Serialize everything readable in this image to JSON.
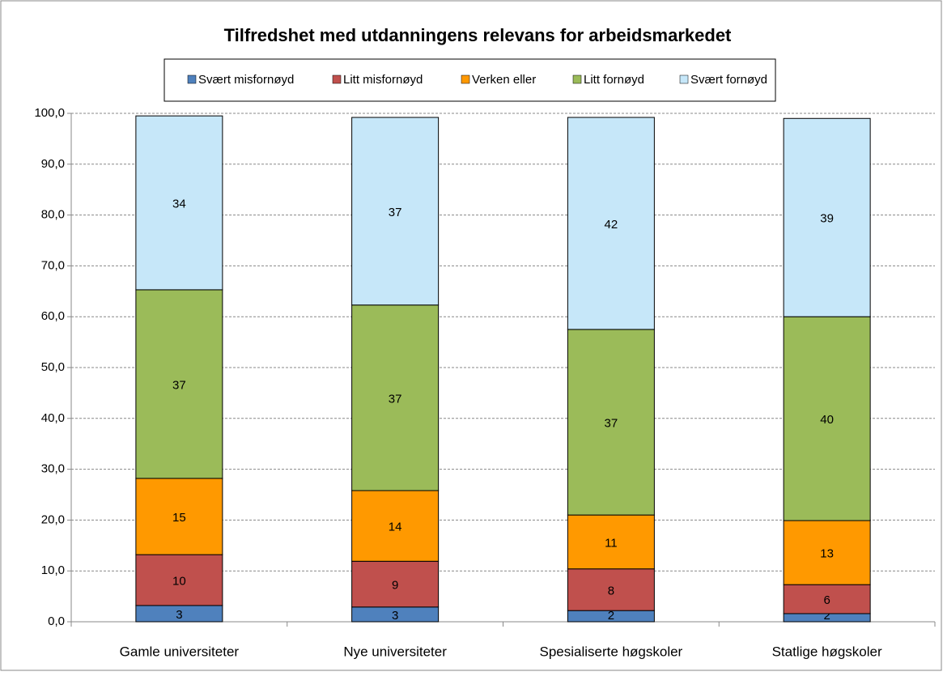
{
  "chart_data": {
    "type": "stacked_bar",
    "title": "Tilfredshet med utdanningens relevans for arbeidsmarkedet",
    "categories": [
      "Gamle universiteter",
      "Nye universiteter",
      "Spesialiserte høgskoler",
      "Statlige høgskoler"
    ],
    "series": [
      {
        "name": "Svært misfornøyd",
        "color": "#4f81bd",
        "values": [
          3.2,
          2.9,
          2.2,
          1.6
        ],
        "value_labels": [
          "3",
          "3",
          "2",
          "2"
        ]
      },
      {
        "name": "Litt misfornøyd",
        "color": "#c0504d",
        "values": [
          10.0,
          9.0,
          8.2,
          5.7
        ],
        "value_labels": [
          "10",
          "9",
          "8",
          "6"
        ]
      },
      {
        "name": "Verken eller",
        "color": "#ff9900",
        "values": [
          15.0,
          13.9,
          10.6,
          12.6
        ],
        "value_labels": [
          "15",
          "14",
          "11",
          "13"
        ]
      },
      {
        "name": "Litt fornøyd",
        "color": "#9bbb59",
        "values": [
          37.1,
          36.5,
          36.5,
          40.1
        ],
        "value_labels": [
          "37",
          "37",
          "37",
          "40"
        ]
      },
      {
        "name": "Svært fornøyd",
        "color": "#c6e7f9",
        "values": [
          34.2,
          36.9,
          41.7,
          39.0
        ],
        "value_labels": [
          "34",
          "37",
          "42",
          "39"
        ]
      }
    ],
    "ylim": [
      0,
      100
    ],
    "yticks": [
      {
        "value": 0,
        "label": "0,0"
      },
      {
        "value": 10,
        "label": "10,0"
      },
      {
        "value": 20,
        "label": "20,0"
      },
      {
        "value": 30,
        "label": "30,0"
      },
      {
        "value": 40,
        "label": "40,0"
      },
      {
        "value": 50,
        "label": "50,0"
      },
      {
        "value": 60,
        "label": "60,0"
      },
      {
        "value": 70,
        "label": "70,0"
      },
      {
        "value": 80,
        "label": "80,0"
      },
      {
        "value": 90,
        "label": "90,0"
      },
      {
        "value": 100,
        "label": "100,0"
      }
    ],
    "grid": true,
    "legend": "top"
  }
}
